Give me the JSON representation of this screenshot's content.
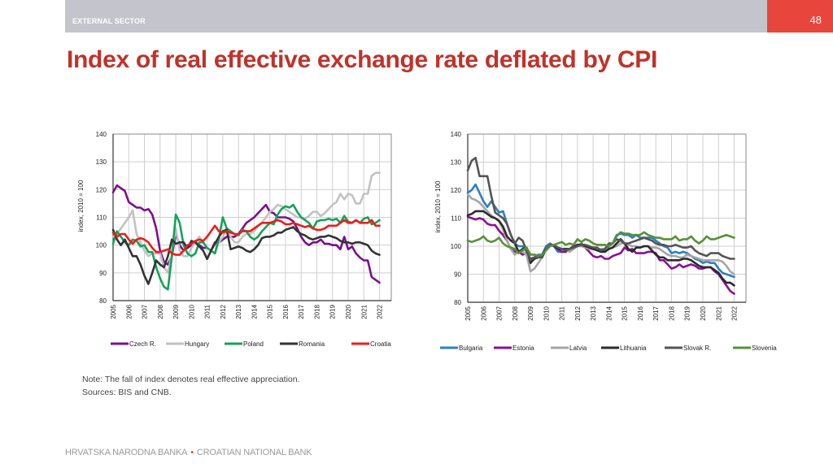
{
  "header": {
    "section": "EXTERNAL SECTOR",
    "page_number": "48",
    "colors": {
      "bar": "#c3c4cc",
      "badge": "#e8453c",
      "title": "#c0322a"
    }
  },
  "title": "Index of real effective exchange rate deflated by CPI",
  "note": "Note: The fall of index denotes real effective appreciation.",
  "sources": "Sources: BIS and CNB.",
  "footer": {
    "left": "HRVATSKA NARODNA BANKA",
    "separator": "•",
    "right": "CROATIAN NATIONAL BANK"
  },
  "chart_data": [
    {
      "type": "line",
      "title": "",
      "xlabel": "",
      "ylabel": "index, 2010 = 100",
      "ylim": [
        80,
        140
      ],
      "yticks": [
        80,
        90,
        100,
        110,
        120,
        130,
        140
      ],
      "xlim": [
        2005,
        2022.75
      ],
      "xticks": [
        "2005",
        "2006",
        "2007",
        "2008",
        "2009",
        "2010",
        "2011",
        "2012",
        "2013",
        "2014",
        "2015",
        "2016",
        "2017",
        "2018",
        "2019",
        "2020",
        "2021",
        "2022"
      ],
      "grid": true,
      "legend": "bottom",
      "x_start": 2005,
      "x_step": 0.25,
      "series": [
        {
          "name": "Czech R.",
          "color": "#7b0f8c",
          "values": [
            119,
            121.5,
            120.5,
            119.5,
            115.5,
            114.5,
            113.5,
            113.5,
            112.5,
            113,
            111,
            106,
            98,
            94,
            93,
            96,
            104,
            100,
            98,
            99,
            100,
            101,
            100,
            99,
            99,
            98,
            101,
            101,
            102,
            103,
            103,
            103,
            104,
            106,
            108,
            109,
            110,
            111.5,
            113,
            114.5,
            112,
            111.5,
            110,
            110,
            110,
            109.5,
            108.5,
            106,
            103,
            101,
            100,
            101,
            101,
            102,
            100.5,
            100.5,
            100,
            100,
            98.5,
            103,
            98.5,
            99.5,
            97,
            95.5,
            94.5,
            94.5,
            88.5,
            87.5,
            86.5
          ]
        },
        {
          "name": "Hungary",
          "color": "#c2c2c2",
          "values": [
            103,
            104,
            106,
            108,
            110,
            112.5,
            104,
            101,
            98,
            96,
            97,
            97,
            97,
            92,
            90,
            97,
            106,
            98,
            96,
            96,
            99,
            101,
            103,
            101,
            99,
            98,
            97,
            101,
            103,
            106,
            103,
            101,
            101,
            103,
            104,
            104,
            105,
            107,
            108,
            110,
            112,
            113,
            114.5,
            114,
            113,
            112,
            111,
            110,
            110,
            109.5,
            110.5,
            112,
            112,
            110.5,
            111.5,
            113,
            114.5,
            115.5,
            118.5,
            116.5,
            118.5,
            118,
            115,
            115,
            118.5,
            118.5,
            125,
            126,
            126
          ]
        },
        {
          "name": "Poland",
          "color": "#14a35a",
          "values": [
            100.5,
            105,
            103,
            101,
            100,
            102,
            101.5,
            99.5,
            100,
            97.5,
            97.5,
            92,
            88,
            85,
            84,
            96,
            111,
            108,
            100,
            97,
            96,
            97,
            101,
            101,
            99,
            98,
            97,
            102.5,
            110,
            106,
            105,
            104,
            103.5,
            105.5,
            105,
            103,
            102,
            103,
            105,
            106.5,
            108,
            107.5,
            111,
            113,
            114,
            113.5,
            114.5,
            112,
            110,
            109,
            108,
            106,
            108.5,
            109,
            109,
            109.5,
            109,
            109.5,
            108,
            110.5,
            108.5,
            108,
            109,
            108,
            109.5,
            110,
            107.5,
            108,
            109
          ]
        },
        {
          "name": "Romania",
          "color": "#333333",
          "values": [
            105.5,
            102,
            100,
            102,
            99,
            96,
            96,
            93,
            89,
            86,
            90,
            94.5,
            93,
            92,
            96,
            102,
            100.5,
            101,
            101,
            99,
            101.5,
            101,
            99.5,
            98,
            95,
            98,
            100.5,
            103,
            105,
            105.5,
            98.5,
            99,
            99.5,
            99,
            98,
            97.5,
            98.5,
            100,
            102.5,
            103,
            103,
            103.5,
            104.5,
            104.5,
            105.5,
            106,
            106.5,
            105,
            104,
            103.5,
            102.5,
            102,
            102.5,
            103,
            103,
            103.5,
            103,
            102.5,
            101.5,
            101,
            101,
            100.5,
            101,
            101,
            100.5,
            100,
            98,
            97,
            96.5
          ]
        },
        {
          "name": "Croatia",
          "color": "#ee1c1c",
          "values": [
            104.5,
            103,
            104,
            104,
            102,
            100.5,
            102,
            102.5,
            102,
            101,
            99,
            97.5,
            97.5,
            98,
            98.5,
            97,
            96.5,
            96.5,
            98,
            100,
            100.5,
            101.5,
            102,
            101.5,
            103,
            105,
            107,
            105,
            104.5,
            105,
            104.5,
            104,
            104,
            105,
            105,
            105,
            106,
            107,
            108,
            108,
            108,
            108.5,
            109,
            108.5,
            107.5,
            107.5,
            108,
            107.5,
            107,
            106.5,
            107,
            106,
            105.5,
            105.5,
            106,
            107,
            107,
            107,
            108,
            109,
            108,
            108,
            109,
            108,
            108,
            108,
            109,
            107,
            107
          ]
        }
      ]
    },
    {
      "type": "line",
      "title": "",
      "xlabel": "",
      "ylabel": "index, 2010 = 100",
      "ylim": [
        80,
        140
      ],
      "yticks": [
        80,
        90,
        100,
        110,
        120,
        130,
        140
      ],
      "xlim": [
        2005,
        2022.75
      ],
      "xticks": [
        "2005",
        "2006",
        "2007",
        "2008",
        "2009",
        "2010",
        "2011",
        "2012",
        "2013",
        "2014",
        "2015",
        "2016",
        "2017",
        "2018",
        "2019",
        "2020",
        "2021",
        "2022"
      ],
      "grid": true,
      "legend": "bottom",
      "x_start": 2005,
      "x_step": 0.25,
      "series": [
        {
          "name": "Bulgaria",
          "color": "#2f7fc1",
          "values": [
            119,
            120,
            122,
            119,
            116,
            114,
            116,
            114,
            112,
            112.5,
            108,
            104,
            101,
            100,
            100,
            98,
            95,
            96,
            97,
            97,
            100,
            101,
            100,
            98,
            98,
            98,
            99,
            100,
            100,
            101,
            100,
            99.5,
            99.5,
            99,
            98.5,
            98,
            100,
            101,
            104,
            104.5,
            104,
            104,
            103,
            104,
            103,
            103,
            103,
            103,
            102,
            101,
            100,
            99.5,
            97.5,
            98,
            97.5,
            98,
            97.5,
            96.5,
            95.5,
            95,
            94,
            94.5,
            94,
            94,
            92,
            90.5,
            90,
            89.5,
            89
          ]
        },
        {
          "name": "Estonia",
          "color": "#8a1292",
          "values": [
            110.5,
            110,
            109.5,
            110,
            109.5,
            108,
            107.5,
            107.5,
            105.5,
            104,
            102,
            99,
            98,
            98,
            97,
            97.5,
            95.5,
            96,
            96.5,
            97,
            99,
            100.5,
            100,
            99,
            98,
            98,
            99,
            100,
            100.5,
            100.5,
            99.5,
            98,
            96.5,
            96,
            96.5,
            95.5,
            95.5,
            96.5,
            97,
            97.5,
            99.5,
            98.5,
            99,
            97.5,
            97.5,
            97.5,
            98,
            98,
            97.5,
            95,
            95,
            93.5,
            92,
            92.5,
            93.5,
            92.5,
            93,
            93.5,
            93,
            92,
            92,
            92.5,
            92.5,
            91,
            90,
            88,
            86,
            84,
            83
          ]
        },
        {
          "name": "Latvia",
          "color": "#a6a6a6",
          "values": [
            118.5,
            117,
            116.5,
            115.5,
            114,
            112.5,
            111,
            110,
            109,
            106,
            102,
            99,
            97,
            98,
            98,
            97,
            91,
            92,
            94,
            96,
            99,
            100.5,
            100.5,
            99.5,
            99,
            99,
            98,
            99,
            100,
            100,
            99.5,
            99,
            99,
            99,
            99,
            99,
            99,
            99.5,
            100,
            101,
            101,
            100.5,
            100,
            100,
            99.5,
            100,
            100,
            99.5,
            99.5,
            99,
            98,
            97,
            96.5,
            96.5,
            96,
            96,
            97,
            96.5,
            96,
            95.5,
            95,
            95,
            95,
            95,
            95,
            94.5,
            93,
            91,
            90
          ]
        },
        {
          "name": "Lithuania",
          "color": "#2b2b2b",
          "values": [
            111,
            111.5,
            112.5,
            112.5,
            112.5,
            111.5,
            110.5,
            110,
            109,
            107,
            103.5,
            102,
            101,
            98,
            99,
            99.5,
            94,
            95.5,
            96,
            96.5,
            99,
            100,
            100.5,
            99,
            99,
            99,
            99,
            99.5,
            100.5,
            100.5,
            100,
            99.5,
            99,
            98.5,
            98,
            98,
            99,
            99.5,
            101,
            102.5,
            101,
            99,
            98,
            99.5,
            99.5,
            100,
            100,
            98.5,
            97,
            96,
            96,
            95,
            95,
            95,
            95,
            95.5,
            95.5,
            95,
            94,
            93,
            92.5,
            92.5,
            92.5,
            91.5,
            90.5,
            88.5,
            87,
            87,
            86
          ]
        },
        {
          "name": "Slovak R.",
          "color": "#555555",
          "values": [
            127,
            130.5,
            131.5,
            125,
            125,
            125,
            118,
            112,
            111,
            110,
            108,
            104,
            101,
            103,
            102,
            98.5,
            95,
            96,
            96,
            96,
            99,
            100.5,
            100.5,
            99.5,
            99,
            98.5,
            99,
            99.5,
            100,
            100.5,
            100.5,
            100,
            99.5,
            99.5,
            98.5,
            99,
            101,
            101,
            102.5,
            102,
            101,
            101,
            101.5,
            102,
            102.5,
            103,
            102.5,
            102,
            101,
            100.5,
            100.5,
            100,
            100,
            100.5,
            100,
            99.5,
            99.5,
            100,
            98.5,
            97.5,
            97,
            96.5,
            97.5,
            97.5,
            97.5,
            96.5,
            96,
            95.5,
            95.5
          ]
        },
        {
          "name": "Slovenia",
          "color": "#56913a",
          "values": [
            102,
            101.5,
            102,
            102.5,
            103.5,
            102,
            101.5,
            102,
            103,
            101,
            100,
            99.5,
            99,
            97.5,
            98.5,
            99.5,
            97,
            97,
            96.5,
            97,
            98.5,
            100,
            100.5,
            101,
            101.5,
            100.5,
            101,
            100.5,
            102.5,
            101.5,
            102.5,
            102,
            101,
            100.5,
            100.5,
            100.5,
            100,
            101,
            103.5,
            105,
            104.5,
            104.5,
            104,
            104,
            104,
            105,
            104,
            103.5,
            103,
            103,
            102.5,
            102.5,
            102.5,
            103.5,
            102,
            102.5,
            102.5,
            103.5,
            102,
            101,
            102,
            103.5,
            102.5,
            102.5,
            103,
            103.5,
            104,
            103.5,
            103
          ]
        }
      ]
    }
  ]
}
